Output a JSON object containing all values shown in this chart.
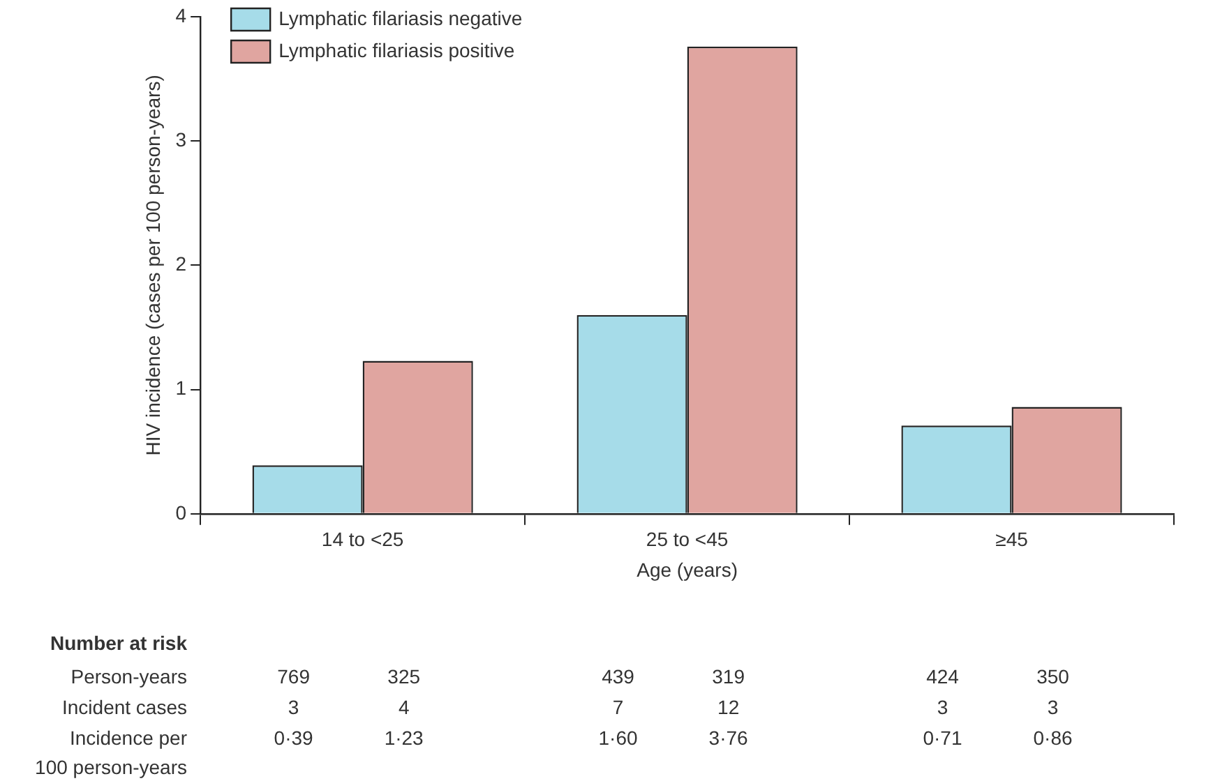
{
  "chart_data": {
    "type": "bar",
    "xlabel": "Age (years)",
    "ylabel": "HIV incidence (cases per 100 person-years)",
    "categories": [
      "14 to <25",
      "25 to <45",
      "≥45"
    ],
    "series": [
      {
        "name": "Lymphatic filariasis negative",
        "color": "#a6dce9",
        "values": [
          0.39,
          1.6,
          0.71
        ]
      },
      {
        "name": "Lymphatic filariasis positive",
        "color": "#e0a5a0",
        "values": [
          1.23,
          3.76,
          0.86
        ]
      }
    ],
    "ylim": [
      0,
      4
    ],
    "yticks": [
      0,
      1,
      2,
      3,
      4
    ],
    "grid": false,
    "legend": "top left",
    "annotations": [
      "Number at risk",
      "Person-years",
      "Incident cases",
      "Incidence per\n100 person-years",
      "769",
      "325",
      "439",
      "319",
      "424",
      "350",
      "3",
      "4",
      "7",
      "12",
      "3",
      "3",
      "0·39",
      "1·23",
      "1·60",
      "3·76",
      "0·71",
      "0·86"
    ]
  }
}
